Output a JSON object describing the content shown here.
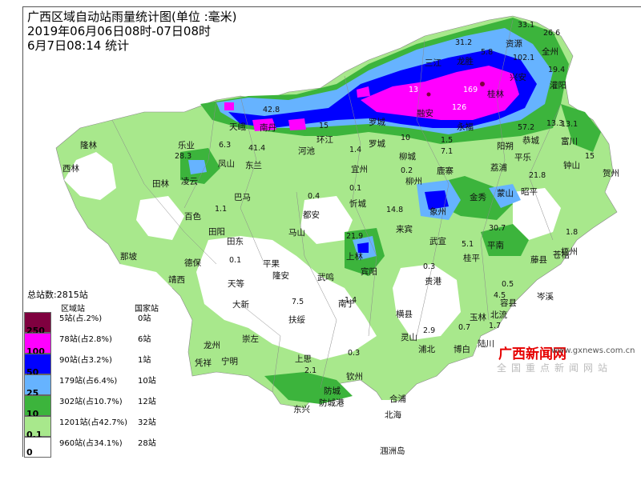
{
  "title": {
    "line1": "广西区域自动站雨量统计图(单位 :毫米)",
    "line2": "2019年06月06日08时-07日08时",
    "line3": "6月7日08:14   统计"
  },
  "colors": {
    "l250": "#7f003f",
    "l100": "#ff00ff",
    "l50": "#0000ff",
    "l25": "#66b3ff",
    "l10": "#3cb43c",
    "l01": "#a8e88c",
    "l0": "#ffffff"
  },
  "legend": {
    "total": "总站数:2815站",
    "col_region": "区域站",
    "col_national": "国家站",
    "rows": [
      {
        "region": "5站(占.2%)",
        "national": "0站"
      },
      {
        "region": "78站(占2.8%)",
        "national": "6站"
      },
      {
        "region": "90站(占3.2%)",
        "national": "1站"
      },
      {
        "region": "179站(占6.4%)",
        "national": "10站"
      },
      {
        "region": "302站(占10.7%)",
        "national": "12站"
      },
      {
        "region": "1201站(占42.7%)",
        "national": "32站"
      },
      {
        "region": "960站(占34.1%)",
        "national": "28站"
      }
    ],
    "levels": [
      "250",
      "100",
      "50",
      "25",
      "10",
      "0.1",
      "0"
    ]
  },
  "cities": [
    "资源",
    "全州",
    "三江",
    "龙胜",
    "兴安",
    "灌阳",
    "桂林",
    "永福",
    "隆林",
    "乐业",
    "天峨",
    "南丹",
    "环江",
    "罗城",
    "融安",
    "阳朔",
    "恭城",
    "富川",
    "西林",
    "凤山",
    "东兰",
    "河池",
    "宜州",
    "柳城",
    "鹿寨",
    "荔浦",
    "平乐",
    "钟山",
    "贺州",
    "田林",
    "凌云",
    "巴马",
    "柳州",
    "金秀",
    "蒙山",
    "昭平",
    "百色",
    "都安",
    "忻城",
    "象州",
    "田阳",
    "马山",
    "来宾",
    "武宣",
    "平南",
    "藤县",
    "梧州",
    "苍梧",
    "那坡",
    "德保",
    "田东",
    "平果",
    "上林",
    "宾阳",
    "桂平",
    "靖西",
    "隆安",
    "武鸣",
    "贵港",
    "容县",
    "岑溪",
    "天等",
    "大新",
    "南宁",
    "横县",
    "玉林",
    "北流",
    "扶绥",
    "灵山",
    "浦北",
    "博白",
    "陆川",
    "龙州",
    "崇左",
    "凭祥",
    "宁明",
    "上思",
    "钦州",
    "防城",
    "防城港",
    "合浦",
    "东兴",
    "北海",
    "涠洲岛"
  ],
  "values": [
    "33.1",
    "26.6",
    "31.2",
    "102.1",
    "19.4",
    "5.8",
    "42.8",
    "13",
    "15",
    "169",
    "126",
    "57.2",
    "13.3",
    "13.1",
    "1.5",
    "1.4",
    "10",
    "15",
    "21.8",
    "6.3",
    "41.4",
    "28.3",
    "0.2",
    "7.1",
    "0.1",
    "1.1",
    "0.4",
    "14.8",
    "30.7",
    "21.9",
    "1.8",
    "5.1",
    "0.3",
    "0.5",
    "7.5",
    "1.4",
    "4.5",
    "1.7",
    "2.9",
    "0.7",
    "2.1",
    "0.3",
    "0.1"
  ],
  "watermark": {
    "brand": "广西新闻网",
    "url": "www.gxnews.com.cn",
    "slogan": "全国重点新闻网站"
  }
}
